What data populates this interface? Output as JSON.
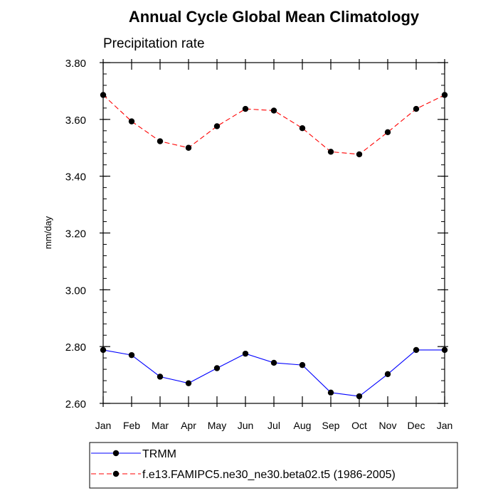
{
  "chart_data": {
    "type": "line",
    "title": "Annual Cycle Global Mean Climatology",
    "subtitle": "Precipitation rate",
    "ylabel": "mm/day",
    "xlabel": "",
    "ylim": [
      2.6,
      3.8
    ],
    "yticks": [
      "2.60",
      "2.80",
      "3.00",
      "3.20",
      "3.40",
      "3.60",
      "3.80"
    ],
    "y_minor_step": 0.04,
    "categories": [
      "Jan",
      "Feb",
      "Mar",
      "Apr",
      "May",
      "Jun",
      "Jul",
      "Aug",
      "Sep",
      "Oct",
      "Nov",
      "Dec",
      "Jan"
    ],
    "legend_position": "bottom",
    "grid": false,
    "series": [
      {
        "name": "TRMM",
        "color": "#0000ff",
        "dashed": false,
        "marker": "filled-circle",
        "values": [
          2.788,
          2.77,
          2.694,
          2.671,
          2.724,
          2.775,
          2.743,
          2.735,
          2.638,
          2.625,
          2.703,
          2.788,
          2.788
        ]
      },
      {
        "name": "f.e13.FAMIPC5.ne30_ne30.beta02.t5 (1986-2005)",
        "color": "#ff0000",
        "dashed": true,
        "marker": "filled-circle",
        "values": [
          3.686,
          3.593,
          3.523,
          3.5,
          3.576,
          3.637,
          3.631,
          3.569,
          3.486,
          3.477,
          3.555,
          3.637,
          3.686
        ]
      }
    ]
  }
}
